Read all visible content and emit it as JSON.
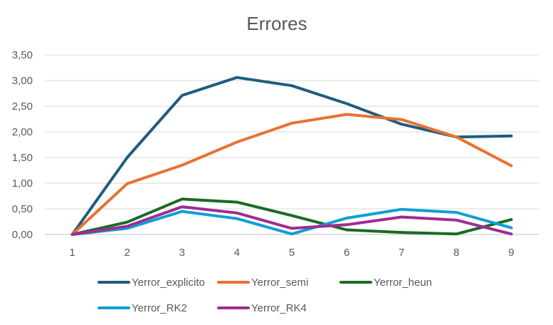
{
  "chart_data": {
    "type": "line",
    "title": "Errores",
    "xlabel": "",
    "ylabel": "",
    "categories": [
      "1",
      "2",
      "3",
      "4",
      "5",
      "6",
      "7",
      "8",
      "9"
    ],
    "ylim": [
      0,
      3.5
    ],
    "yticks": [
      0,
      0.5,
      1,
      1.5,
      2,
      2.5,
      3,
      3.5
    ],
    "ytick_labels": [
      "0,00",
      "0,50",
      "1,00",
      "1,50",
      "2,00",
      "2,50",
      "3,00",
      "3,50"
    ],
    "grid": true,
    "legend_position": "bottom",
    "series": [
      {
        "name": "Yerror_explicito",
        "color": "#1f5c80",
        "values": [
          0,
          1.5,
          2.71,
          3.06,
          2.9,
          2.55,
          2.15,
          1.9,
          1.92
        ]
      },
      {
        "name": "Yerror_semi",
        "color": "#e97132",
        "values": [
          0,
          0.99,
          1.35,
          1.8,
          2.17,
          2.34,
          2.24,
          1.9,
          1.34
        ]
      },
      {
        "name": "Yerror_heun",
        "color": "#196b24",
        "values": [
          0,
          0.24,
          0.69,
          0.63,
          0.37,
          0.09,
          0.04,
          0.01,
          0.29
        ]
      },
      {
        "name": "Yerror_RK2",
        "color": "#0f9ed5",
        "values": [
          0,
          0.12,
          0.45,
          0.31,
          0.01,
          0.32,
          0.49,
          0.43,
          0.13
        ]
      },
      {
        "name": "Yerror_RK4",
        "color": "#a02b93",
        "values": [
          0,
          0.16,
          0.54,
          0.42,
          0.12,
          0.19,
          0.34,
          0.28,
          0.01
        ]
      }
    ]
  }
}
